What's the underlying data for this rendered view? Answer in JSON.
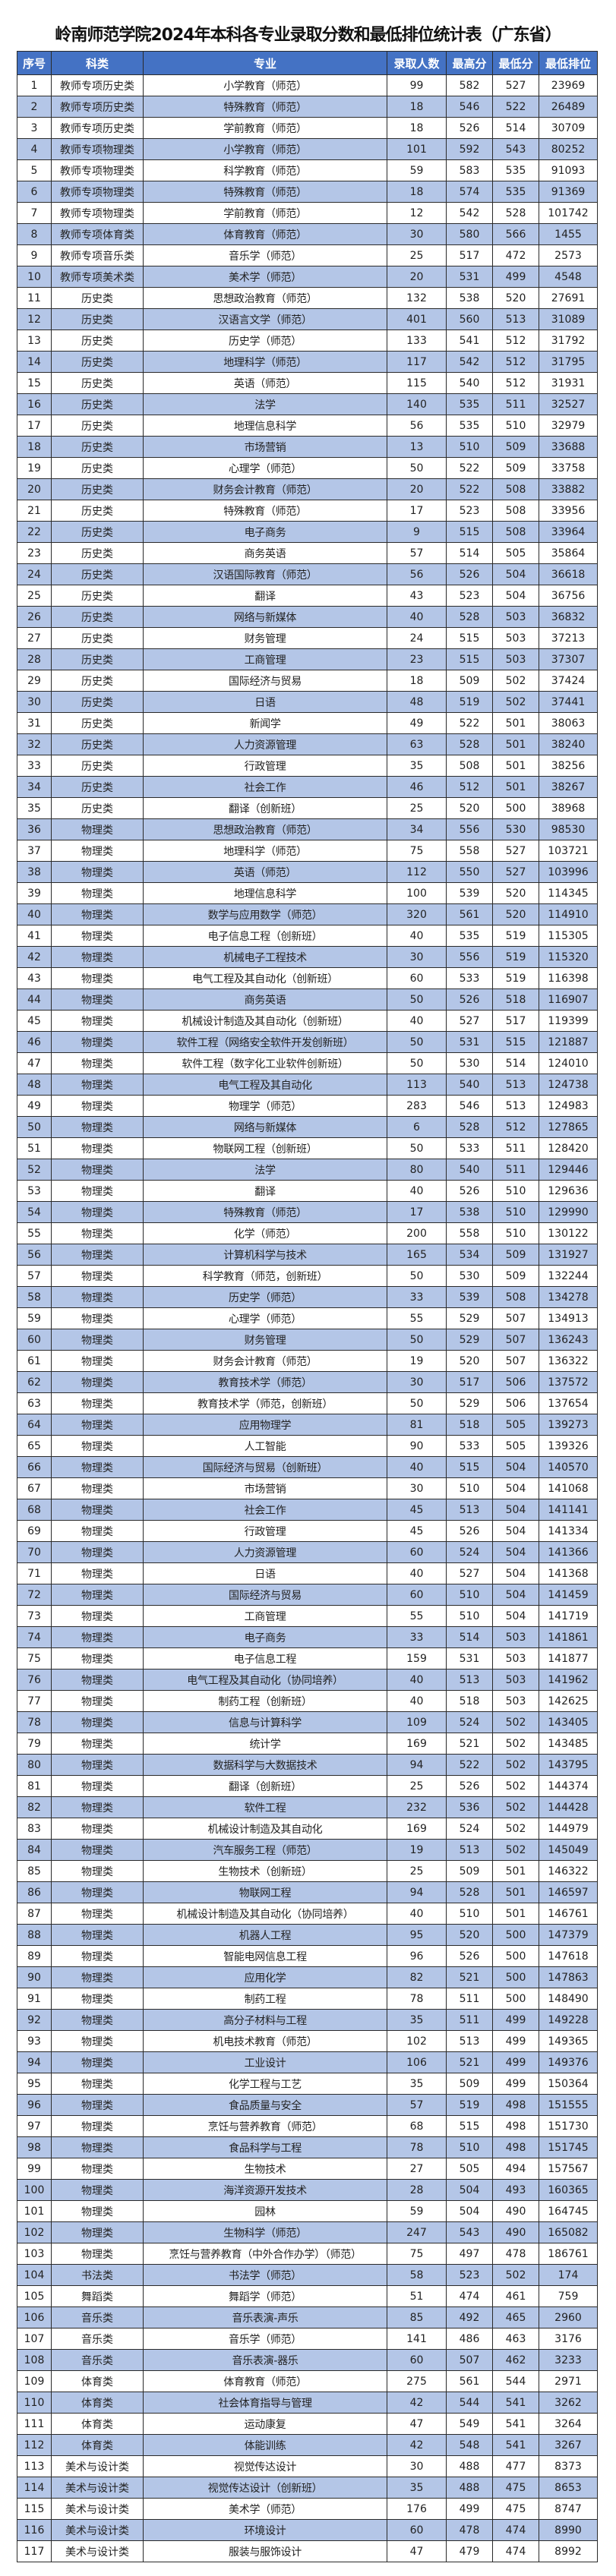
{
  "title": "岭南师范学院2024年本科各专业录取分数和最低排位统计表（广东省）",
  "colors": {
    "header_bg": "#4472C4",
    "alt_row_bg": "#B4C6E7"
  },
  "columns": [
    "序号",
    "科类",
    "专业",
    "录取人数",
    "最高分",
    "最低分",
    "最低排位"
  ],
  "rows": [
    [
      "1",
      "教师专项历史类",
      "小学教育（师范）",
      "99",
      "582",
      "527",
      "23969"
    ],
    [
      "2",
      "教师专项历史类",
      "特殊教育（师范）",
      "18",
      "546",
      "522",
      "26489"
    ],
    [
      "3",
      "教师专项历史类",
      "学前教育（师范）",
      "18",
      "526",
      "514",
      "30709"
    ],
    [
      "4",
      "教师专项物理类",
      "小学教育（师范）",
      "101",
      "592",
      "543",
      "80252"
    ],
    [
      "5",
      "教师专项物理类",
      "科学教育（师范）",
      "59",
      "583",
      "535",
      "91093"
    ],
    [
      "6",
      "教师专项物理类",
      "特殊教育（师范）",
      "18",
      "574",
      "535",
      "91369"
    ],
    [
      "7",
      "教师专项物理类",
      "学前教育（师范）",
      "12",
      "542",
      "528",
      "101742"
    ],
    [
      "8",
      "教师专项体育类",
      "体育教育（师范）",
      "30",
      "580",
      "566",
      "1455"
    ],
    [
      "9",
      "教师专项音乐类",
      "音乐学（师范）",
      "25",
      "517",
      "472",
      "2573"
    ],
    [
      "10",
      "教师专项美术类",
      "美术学（师范）",
      "20",
      "531",
      "499",
      "4548"
    ],
    [
      "11",
      "历史类",
      "思想政治教育（师范）",
      "132",
      "538",
      "520",
      "27691"
    ],
    [
      "12",
      "历史类",
      "汉语言文学（师范）",
      "401",
      "560",
      "513",
      "31089"
    ],
    [
      "13",
      "历史类",
      "历史学（师范）",
      "133",
      "541",
      "512",
      "31792"
    ],
    [
      "14",
      "历史类",
      "地理科学（师范）",
      "117",
      "542",
      "512",
      "31795"
    ],
    [
      "15",
      "历史类",
      "英语（师范）",
      "115",
      "540",
      "512",
      "31931"
    ],
    [
      "16",
      "历史类",
      "法学",
      "140",
      "535",
      "511",
      "32527"
    ],
    [
      "17",
      "历史类",
      "地理信息科学",
      "56",
      "535",
      "510",
      "32979"
    ],
    [
      "18",
      "历史类",
      "市场营销",
      "13",
      "510",
      "509",
      "33688"
    ],
    [
      "19",
      "历史类",
      "心理学（师范）",
      "50",
      "522",
      "509",
      "33758"
    ],
    [
      "20",
      "历史类",
      "财务会计教育（师范）",
      "20",
      "522",
      "508",
      "33882"
    ],
    [
      "21",
      "历史类",
      "特殊教育（师范）",
      "17",
      "523",
      "508",
      "33956"
    ],
    [
      "22",
      "历史类",
      "电子商务",
      "9",
      "515",
      "508",
      "33964"
    ],
    [
      "23",
      "历史类",
      "商务英语",
      "57",
      "514",
      "505",
      "35864"
    ],
    [
      "24",
      "历史类",
      "汉语国际教育（师范）",
      "56",
      "526",
      "504",
      "36618"
    ],
    [
      "25",
      "历史类",
      "翻译",
      "43",
      "523",
      "504",
      "36756"
    ],
    [
      "26",
      "历史类",
      "网络与新媒体",
      "40",
      "528",
      "503",
      "36832"
    ],
    [
      "27",
      "历史类",
      "财务管理",
      "24",
      "515",
      "503",
      "37213"
    ],
    [
      "28",
      "历史类",
      "工商管理",
      "23",
      "515",
      "503",
      "37307"
    ],
    [
      "29",
      "历史类",
      "国际经济与贸易",
      "18",
      "509",
      "502",
      "37424"
    ],
    [
      "30",
      "历史类",
      "日语",
      "48",
      "519",
      "502",
      "37441"
    ],
    [
      "31",
      "历史类",
      "新闻学",
      "49",
      "522",
      "501",
      "38063"
    ],
    [
      "32",
      "历史类",
      "人力资源管理",
      "63",
      "528",
      "501",
      "38240"
    ],
    [
      "33",
      "历史类",
      "行政管理",
      "35",
      "508",
      "501",
      "38256"
    ],
    [
      "34",
      "历史类",
      "社会工作",
      "46",
      "512",
      "501",
      "38267"
    ],
    [
      "35",
      "历史类",
      "翻译（创新班）",
      "25",
      "520",
      "500",
      "38968"
    ],
    [
      "36",
      "物理类",
      "思想政治教育（师范）",
      "34",
      "556",
      "530",
      "98530"
    ],
    [
      "37",
      "物理类",
      "地理科学（师范）",
      "75",
      "558",
      "527",
      "103721"
    ],
    [
      "38",
      "物理类",
      "英语（师范）",
      "112",
      "550",
      "527",
      "103996"
    ],
    [
      "39",
      "物理类",
      "地理信息科学",
      "100",
      "539",
      "520",
      "114345"
    ],
    [
      "40",
      "物理类",
      "数学与应用数学（师范）",
      "320",
      "561",
      "520",
      "114910"
    ],
    [
      "41",
      "物理类",
      "电子信息工程（创新班）",
      "40",
      "535",
      "519",
      "115305"
    ],
    [
      "42",
      "物理类",
      "机械电子工程技术",
      "30",
      "556",
      "519",
      "115320"
    ],
    [
      "43",
      "物理类",
      "电气工程及其自动化（创新班）",
      "60",
      "533",
      "519",
      "116398"
    ],
    [
      "44",
      "物理类",
      "商务英语",
      "50",
      "526",
      "518",
      "116907"
    ],
    [
      "45",
      "物理类",
      "机械设计制造及其自动化（创新班）",
      "40",
      "527",
      "517",
      "119399"
    ],
    [
      "46",
      "物理类",
      "软件工程（网络安全软件开发创新班）",
      "50",
      "531",
      "515",
      "121887"
    ],
    [
      "47",
      "物理类",
      "软件工程（数字化工业软件创新班）",
      "50",
      "530",
      "514",
      "124010"
    ],
    [
      "48",
      "物理类",
      "电气工程及其自动化",
      "113",
      "540",
      "513",
      "124738"
    ],
    [
      "49",
      "物理类",
      "物理学（师范）",
      "283",
      "546",
      "513",
      "124983"
    ],
    [
      "50",
      "物理类",
      "网络与新媒体",
      "6",
      "528",
      "512",
      "127865"
    ],
    [
      "51",
      "物理类",
      "物联网工程（创新班）",
      "50",
      "533",
      "511",
      "128420"
    ],
    [
      "52",
      "物理类",
      "法学",
      "80",
      "540",
      "511",
      "129446"
    ],
    [
      "53",
      "物理类",
      "翻译",
      "40",
      "526",
      "510",
      "129636"
    ],
    [
      "54",
      "物理类",
      "特殊教育（师范）",
      "17",
      "538",
      "510",
      "129990"
    ],
    [
      "55",
      "物理类",
      "化学（师范）",
      "200",
      "558",
      "510",
      "130122"
    ],
    [
      "56",
      "物理类",
      "计算机科学与技术",
      "165",
      "534",
      "509",
      "131927"
    ],
    [
      "57",
      "物理类",
      "科学教育（师范，创新班）",
      "50",
      "530",
      "509",
      "132244"
    ],
    [
      "58",
      "物理类",
      "历史学（师范）",
      "33",
      "539",
      "508",
      "134278"
    ],
    [
      "59",
      "物理类",
      "心理学（师范）",
      "55",
      "529",
      "507",
      "134913"
    ],
    [
      "60",
      "物理类",
      "财务管理",
      "50",
      "529",
      "507",
      "136243"
    ],
    [
      "61",
      "物理类",
      "财务会计教育（师范）",
      "19",
      "520",
      "507",
      "136322"
    ],
    [
      "62",
      "物理类",
      "教育技术学（师范）",
      "30",
      "517",
      "506",
      "137572"
    ],
    [
      "63",
      "物理类",
      "教育技术学（师范，创新班）",
      "50",
      "529",
      "506",
      "137654"
    ],
    [
      "64",
      "物理类",
      "应用物理学",
      "81",
      "518",
      "505",
      "139273"
    ],
    [
      "65",
      "物理类",
      "人工智能",
      "90",
      "533",
      "505",
      "139326"
    ],
    [
      "66",
      "物理类",
      "国际经济与贸易（创新班）",
      "40",
      "515",
      "504",
      "140570"
    ],
    [
      "67",
      "物理类",
      "市场营销",
      "30",
      "510",
      "504",
      "141068"
    ],
    [
      "68",
      "物理类",
      "社会工作",
      "45",
      "513",
      "504",
      "141141"
    ],
    [
      "69",
      "物理类",
      "行政管理",
      "45",
      "526",
      "504",
      "141334"
    ],
    [
      "70",
      "物理类",
      "人力资源管理",
      "60",
      "524",
      "504",
      "141366"
    ],
    [
      "71",
      "物理类",
      "日语",
      "40",
      "527",
      "504",
      "141368"
    ],
    [
      "72",
      "物理类",
      "国际经济与贸易",
      "60",
      "510",
      "504",
      "141459"
    ],
    [
      "73",
      "物理类",
      "工商管理",
      "55",
      "510",
      "504",
      "141719"
    ],
    [
      "74",
      "物理类",
      "电子商务",
      "33",
      "514",
      "503",
      "141861"
    ],
    [
      "75",
      "物理类",
      "电子信息工程",
      "159",
      "531",
      "503",
      "141877"
    ],
    [
      "76",
      "物理类",
      "电气工程及其自动化（协同培养）",
      "40",
      "513",
      "503",
      "141962"
    ],
    [
      "77",
      "物理类",
      "制药工程（创新班）",
      "40",
      "518",
      "503",
      "142625"
    ],
    [
      "78",
      "物理类",
      "信息与计算科学",
      "109",
      "524",
      "502",
      "143405"
    ],
    [
      "79",
      "物理类",
      "统计学",
      "169",
      "521",
      "502",
      "143485"
    ],
    [
      "80",
      "物理类",
      "数据科学与大数据技术",
      "94",
      "522",
      "502",
      "143795"
    ],
    [
      "81",
      "物理类",
      "翻译（创新班）",
      "25",
      "526",
      "502",
      "144374"
    ],
    [
      "82",
      "物理类",
      "软件工程",
      "232",
      "536",
      "502",
      "144428"
    ],
    [
      "83",
      "物理类",
      "机械设计制造及其自动化",
      "169",
      "524",
      "502",
      "144979"
    ],
    [
      "84",
      "物理类",
      "汽车服务工程（师范）",
      "19",
      "513",
      "502",
      "145049"
    ],
    [
      "85",
      "物理类",
      "生物技术（创新班）",
      "25",
      "509",
      "501",
      "146322"
    ],
    [
      "86",
      "物理类",
      "物联网工程",
      "94",
      "528",
      "501",
      "146597"
    ],
    [
      "87",
      "物理类",
      "机械设计制造及其自动化（协同培养）",
      "40",
      "510",
      "501",
      "146761"
    ],
    [
      "88",
      "物理类",
      "机器人工程",
      "95",
      "520",
      "500",
      "147379"
    ],
    [
      "89",
      "物理类",
      "智能电网信息工程",
      "96",
      "526",
      "500",
      "147618"
    ],
    [
      "90",
      "物理类",
      "应用化学",
      "82",
      "521",
      "500",
      "147863"
    ],
    [
      "91",
      "物理类",
      "制药工程",
      "78",
      "511",
      "500",
      "148490"
    ],
    [
      "92",
      "物理类",
      "高分子材料与工程",
      "35",
      "511",
      "499",
      "149228"
    ],
    [
      "93",
      "物理类",
      "机电技术教育（师范）",
      "102",
      "513",
      "499",
      "149365"
    ],
    [
      "94",
      "物理类",
      "工业设计",
      "106",
      "521",
      "499",
      "149376"
    ],
    [
      "95",
      "物理类",
      "化学工程与工艺",
      "35",
      "509",
      "499",
      "150364"
    ],
    [
      "96",
      "物理类",
      "食品质量与安全",
      "57",
      "519",
      "498",
      "151555"
    ],
    [
      "97",
      "物理类",
      "烹饪与营养教育（师范）",
      "68",
      "515",
      "498",
      "151730"
    ],
    [
      "98",
      "物理类",
      "食品科学与工程",
      "78",
      "510",
      "498",
      "151745"
    ],
    [
      "99",
      "物理类",
      "生物技术",
      "27",
      "505",
      "494",
      "157567"
    ],
    [
      "100",
      "物理类",
      "海洋资源开发技术",
      "28",
      "504",
      "493",
      "160365"
    ],
    [
      "101",
      "物理类",
      "园林",
      "59",
      "504",
      "490",
      "164745"
    ],
    [
      "102",
      "物理类",
      "生物科学（师范）",
      "247",
      "543",
      "490",
      "165082"
    ],
    [
      "103",
      "物理类",
      "烹饪与营养教育（中外合作办学）（师范）",
      "75",
      "497",
      "478",
      "186761"
    ],
    [
      "104",
      "书法类",
      "书法学（师范）",
      "58",
      "523",
      "502",
      "174"
    ],
    [
      "105",
      "舞蹈类",
      "舞蹈学（师范）",
      "51",
      "474",
      "461",
      "759"
    ],
    [
      "106",
      "音乐类",
      "音乐表演-声乐",
      "85",
      "492",
      "465",
      "2960"
    ],
    [
      "107",
      "音乐类",
      "音乐学（师范）",
      "141",
      "486",
      "463",
      "3176"
    ],
    [
      "108",
      "音乐类",
      "音乐表演-器乐",
      "60",
      "507",
      "462",
      "3233"
    ],
    [
      "109",
      "体育类",
      "体育教育（师范）",
      "275",
      "561",
      "544",
      "2971"
    ],
    [
      "110",
      "体育类",
      "社会体育指导与管理",
      "42",
      "544",
      "541",
      "3262"
    ],
    [
      "111",
      "体育类",
      "运动康复",
      "47",
      "549",
      "541",
      "3264"
    ],
    [
      "112",
      "体育类",
      "体能训练",
      "42",
      "548",
      "541",
      "3267"
    ],
    [
      "113",
      "美术与设计类",
      "视觉传达设计",
      "30",
      "488",
      "477",
      "8373"
    ],
    [
      "114",
      "美术与设计类",
      "视觉传达设计（创新班）",
      "35",
      "488",
      "475",
      "8653"
    ],
    [
      "115",
      "美术与设计类",
      "美术学（师范）",
      "176",
      "499",
      "475",
      "8747"
    ],
    [
      "116",
      "美术与设计类",
      "环境设计",
      "60",
      "478",
      "474",
      "8990"
    ],
    [
      "117",
      "美术与设计类",
      "服装与服饰设计",
      "47",
      "479",
      "474",
      "8992"
    ]
  ]
}
